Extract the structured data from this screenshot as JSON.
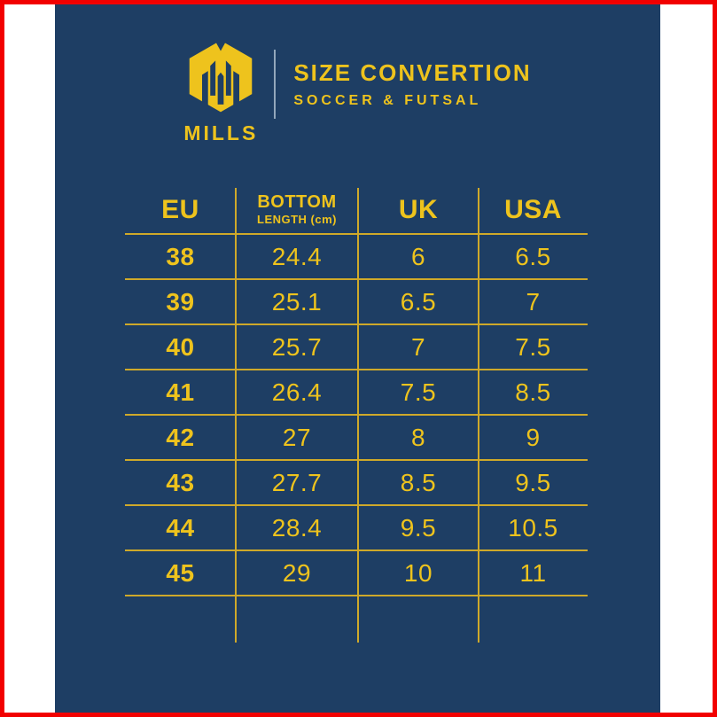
{
  "brand": {
    "name": "MILLS"
  },
  "chart_data": {
    "type": "table",
    "title": "SIZE CONVERTION",
    "subtitle": "SOCCER & FUTSAL",
    "columns": [
      {
        "label": "EU",
        "sublabel": ""
      },
      {
        "label": "BOTTOM",
        "sublabel": "LENGTH (cm)"
      },
      {
        "label": "UK",
        "sublabel": ""
      },
      {
        "label": "USA",
        "sublabel": ""
      }
    ],
    "rows": [
      [
        "38",
        "24.4",
        "6",
        "6.5"
      ],
      [
        "39",
        "25.1",
        "6.5",
        "7"
      ],
      [
        "40",
        "25.7",
        "7",
        "7.5"
      ],
      [
        "41",
        "26.4",
        "7.5",
        "8.5"
      ],
      [
        "42",
        "27",
        "8",
        "9"
      ],
      [
        "43",
        "27.7",
        "8.5",
        "9.5"
      ],
      [
        "44",
        "28.4",
        "9.5",
        "10.5"
      ],
      [
        "45",
        "29",
        "10",
        "11"
      ]
    ]
  },
  "colors": {
    "panel_navy": "#1e3e64",
    "accent_yellow": "#eec31d",
    "grid_line_yellow": "#cfa92a",
    "frame_red": "#f20000",
    "matte_white": "#ffffff",
    "divider_gray": "#93a7bb"
  }
}
